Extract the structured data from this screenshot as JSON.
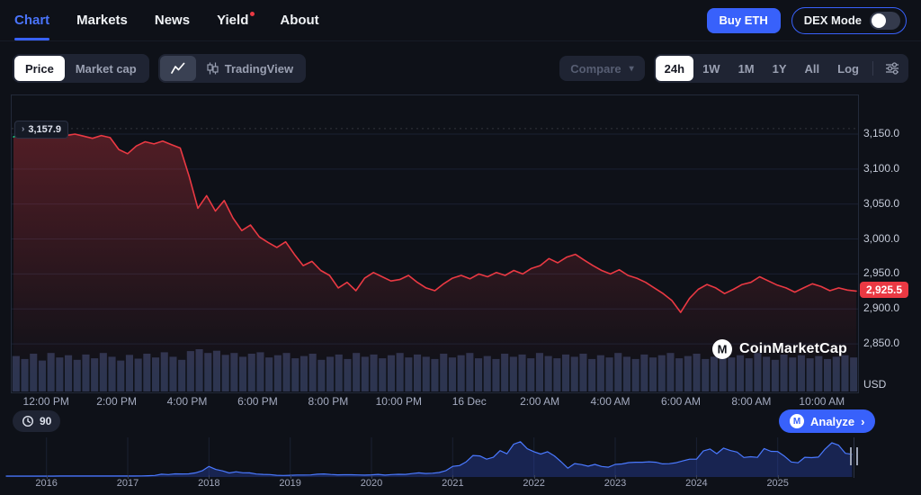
{
  "colors": {
    "accent": "#3861fb",
    "red": "#ea3943",
    "green": "#16c784",
    "grid": "#1a2132",
    "volume": "#2d3550",
    "mini_line": "#4a79ff",
    "mini_fill": "rgba(56,97,251,0.25)"
  },
  "header": {
    "tabs": [
      {
        "label": "Chart",
        "active": true
      },
      {
        "label": "Markets"
      },
      {
        "label": "News"
      },
      {
        "label": "Yield",
        "dot": true
      },
      {
        "label": "About"
      }
    ],
    "buy_button_label": "Buy ETH",
    "dex_mode_label": "DEX Mode"
  },
  "toolbar": {
    "price_label": "Price",
    "market_cap_label": "Market cap",
    "tradingview_label": "TradingView",
    "compare_label": "Compare",
    "ranges": [
      "24h",
      "1W",
      "1M",
      "1Y",
      "All",
      "Log"
    ],
    "active_range": "24h"
  },
  "footer": {
    "history_count": "90",
    "analyze_label": "Analyze",
    "watermark": "CoinMarketCap",
    "logo_letter": "M"
  },
  "chart_data": [
    {
      "type": "line",
      "title": "ETH/USD 24h price",
      "unit_label": "USD",
      "open_price": 3157.9,
      "open_price_label": "3,157.9",
      "last_price": 2925.5,
      "last_price_label": "2,925.5",
      "y_ticks": [
        3150,
        3100,
        3050,
        3000,
        2950,
        2900,
        2850
      ],
      "y_tick_labels": [
        "3,150.0",
        "3,100.0",
        "3,050.0",
        "3,000.0",
        "2,950.0",
        "2,900.0",
        "2,850.0"
      ],
      "x_labels": [
        "12:00 PM",
        "2:00 PM",
        "4:00 PM",
        "6:00 PM",
        "8:00 PM",
        "10:00 PM",
        "16 Dec",
        "2:00 AM",
        "4:00 AM",
        "6:00 AM",
        "8:00 AM",
        "10:00 AM"
      ],
      "green_until_index": 4,
      "prices": [
        3146,
        3151,
        3155,
        3152,
        3157.9,
        3153,
        3148,
        3150,
        3147,
        3144,
        3148,
        3145,
        3128,
        3122,
        3133,
        3139,
        3136,
        3140,
        3135,
        3130,
        3090,
        3044,
        3062,
        3040,
        3055,
        3030,
        3012,
        3020,
        3003,
        2995,
        2988,
        2996,
        2978,
        2962,
        2968,
        2955,
        2948,
        2930,
        2938,
        2926,
        2944,
        2952,
        2946,
        2940,
        2942,
        2948,
        2938,
        2930,
        2926,
        2936,
        2944,
        2948,
        2943,
        2950,
        2946,
        2952,
        2948,
        2955,
        2950,
        2958,
        2962,
        2972,
        2966,
        2974,
        2978,
        2970,
        2962,
        2955,
        2950,
        2956,
        2948,
        2944,
        2938,
        2930,
        2922,
        2912,
        2895,
        2915,
        2928,
        2935,
        2930,
        2922,
        2928,
        2935,
        2938,
        2946,
        2940,
        2934,
        2930,
        2924,
        2930,
        2936,
        2932,
        2926,
        2930,
        2927,
        2925.5
      ],
      "volumes": [
        0.82,
        0.74,
        0.88,
        0.7,
        0.9,
        0.78,
        0.84,
        0.72,
        0.86,
        0.76,
        0.9,
        0.8,
        0.7,
        0.85,
        0.75,
        0.88,
        0.78,
        0.92,
        0.8,
        0.72,
        0.95,
        1.0,
        0.9,
        0.96,
        0.85,
        0.9,
        0.8,
        0.88,
        0.92,
        0.78,
        0.84,
        0.9,
        0.76,
        0.82,
        0.88,
        0.72,
        0.8,
        0.86,
        0.74,
        0.9,
        0.8,
        0.86,
        0.76,
        0.84,
        0.9,
        0.78,
        0.86,
        0.8,
        0.74,
        0.88,
        0.78,
        0.84,
        0.9,
        0.76,
        0.82,
        0.74,
        0.88,
        0.8,
        0.86,
        0.76,
        0.9,
        0.82,
        0.76,
        0.86,
        0.8,
        0.88,
        0.74,
        0.84,
        0.78,
        0.9,
        0.8,
        0.74,
        0.86,
        0.78,
        0.84,
        0.9,
        0.76,
        0.82,
        0.88,
        0.74,
        0.8,
        0.86,
        0.78,
        0.84,
        0.76,
        0.9,
        0.8,
        0.72,
        0.86,
        0.78,
        0.84,
        0.76,
        0.82,
        0.74,
        0.8,
        0.84,
        0.78
      ]
    },
    {
      "type": "area",
      "title": "All-time price brush",
      "x_labels": [
        "2016",
        "2017",
        "2018",
        "2019",
        "2020",
        "2021",
        "2022",
        "2023",
        "2024",
        "2025"
      ],
      "first_year_start_index": 6,
      "months_per_year": 12,
      "values": [
        1,
        1,
        1,
        1,
        1,
        1,
        2,
        3,
        10,
        8,
        12,
        13,
        11,
        11,
        12,
        12,
        10,
        8,
        10,
        13,
        25,
        50,
        90,
        260,
        200,
        300,
        290,
        300,
        430,
        720,
        1300,
        900,
        700,
        420,
        580,
        450,
        430,
        280,
        230,
        200,
        110,
        85,
        107,
        140,
        142,
        162,
        255,
        290,
        218,
        172,
        180,
        180,
        152,
        130,
        172,
        230,
        134,
        206,
        245,
        228,
        335,
        430,
        355,
        385,
        480,
        740,
        1310,
        1420,
        1920,
        2770,
        2710,
        2280,
        2530,
        3430,
        3000,
        4290,
        4630,
        3680,
        3280,
        2970,
        3280,
        2730,
        1940,
        1070,
        1680,
        1550,
        1330,
        1570,
        1290,
        1200,
        1580,
        1640,
        1820,
        1870,
        1870,
        1930,
        1860,
        1650,
        1670,
        1800,
        2050,
        2280,
        2280,
        3380,
        3650,
        3010,
        3760,
        3440,
        3230,
        2510,
        2600,
        2520,
        3700,
        3330,
        3300,
        2680,
        1900,
        1790,
        2530,
        2480,
        2560,
        3640,
        4480,
        4150,
        3060,
        2925
      ]
    }
  ]
}
